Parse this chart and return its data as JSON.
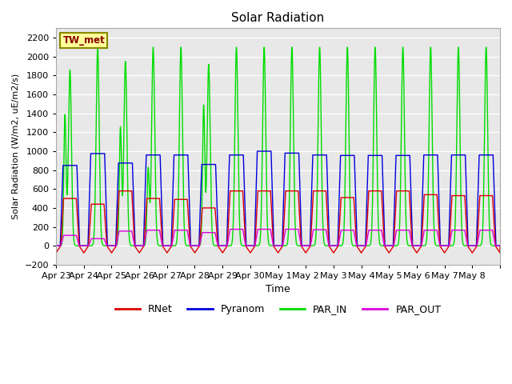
{
  "title": "Solar Radiation",
  "ylabel": "Solar Radiation (W/m2, uE/m2/s)",
  "xlabel": "Time",
  "ylim": [
    -200,
    2300
  ],
  "yticks": [
    -200,
    0,
    200,
    400,
    600,
    800,
    1000,
    1200,
    1400,
    1600,
    1800,
    2000,
    2200
  ],
  "colors": {
    "RNet": "#dd0000",
    "Pyranom": "#0000dd",
    "PAR_IN": "#00dd00",
    "PAR_OUT": "#dd00dd"
  },
  "background_color": "#e8e8e8",
  "site_label": "TW_met",
  "site_label_color": "#880000",
  "site_label_bg": "#ffff99",
  "site_label_border": "#888800",
  "num_days": 16,
  "day_labels": [
    "Apr 23",
    "Apr 24",
    "Apr 25",
    "Apr 26",
    "Apr 27",
    "Apr 28",
    "Apr 29",
    "Apr 30",
    "May 1",
    "May 2",
    "May 3",
    "May 4",
    "May 5",
    "May 6",
    "May 7",
    "May 8"
  ],
  "PAR_IN_peaks": [
    1860,
    2100,
    1950,
    2100,
    2100,
    1920,
    2100,
    2100,
    2100,
    2100,
    2100,
    2100,
    2100,
    2100,
    2100,
    2100
  ],
  "PAR_IN_secondary": [
    1380,
    0,
    1250,
    820,
    0,
    1480,
    0,
    0,
    0,
    0,
    0,
    0,
    0,
    0,
    0,
    0
  ],
  "Pyranom_peaks": [
    850,
    975,
    875,
    960,
    960,
    860,
    960,
    1000,
    980,
    960,
    955,
    955,
    955,
    960,
    960,
    960
  ],
  "RNet_peaks": [
    500,
    440,
    580,
    500,
    490,
    400,
    580,
    580,
    580,
    580,
    510,
    580,
    580,
    540,
    530,
    530
  ],
  "PAR_OUT_peaks": [
    110,
    75,
    155,
    165,
    165,
    140,
    175,
    175,
    175,
    170,
    165,
    165,
    165,
    165,
    165,
    165
  ],
  "night_min_RNet": -75,
  "pts_per_day": 288
}
